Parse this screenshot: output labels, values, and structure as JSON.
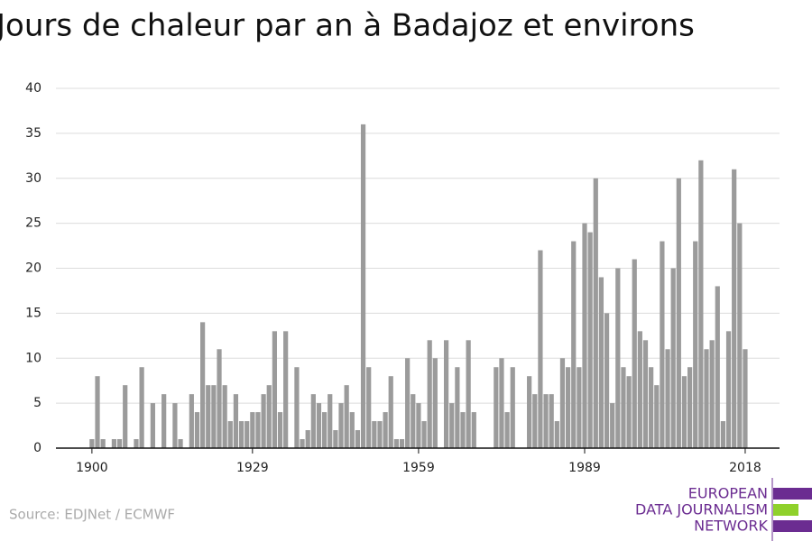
{
  "chart_data": {
    "type": "bar",
    "title": "Jours de chaleur par an à Badajoz et environs",
    "source": "Source: EDJNet / ECMWF",
    "logo": [
      "EUROPEAN",
      "DATA JOURNALISM",
      "NETWORK"
    ],
    "color": "#9b9b9b",
    "x": [
      1900,
      1901,
      1902,
      1903,
      1904,
      1905,
      1906,
      1907,
      1908,
      1909,
      1910,
      1911,
      1912,
      1913,
      1914,
      1915,
      1916,
      1917,
      1918,
      1919,
      1920,
      1921,
      1922,
      1923,
      1924,
      1925,
      1926,
      1927,
      1928,
      1929,
      1930,
      1931,
      1932,
      1933,
      1934,
      1935,
      1936,
      1937,
      1938,
      1939,
      1940,
      1941,
      1942,
      1943,
      1944,
      1945,
      1946,
      1947,
      1948,
      1949,
      1950,
      1951,
      1952,
      1953,
      1954,
      1955,
      1956,
      1957,
      1958,
      1959,
      1960,
      1961,
      1962,
      1963,
      1964,
      1965,
      1966,
      1967,
      1968,
      1969,
      1970,
      1971,
      1972,
      1973,
      1974,
      1975,
      1976,
      1977,
      1978,
      1979,
      1980,
      1981,
      1982,
      1983,
      1984,
      1985,
      1986,
      1987,
      1988,
      1989,
      1990,
      1991,
      1992,
      1993,
      1994,
      1995,
      1996,
      1997,
      1998,
      1999,
      2000,
      2001,
      2002,
      2003,
      2004,
      2005,
      2006,
      2007,
      2008,
      2009,
      2010,
      2011,
      2012,
      2013,
      2014,
      2015,
      2016,
      2017,
      2018
    ],
    "values": [
      1,
      8,
      1,
      0,
      1,
      1,
      7,
      0,
      1,
      9,
      0,
      5,
      0,
      6,
      0,
      5,
      1,
      0,
      6,
      4,
      14,
      7,
      7,
      11,
      7,
      3,
      6,
      3,
      3,
      4,
      4,
      6,
      7,
      13,
      4,
      13,
      0,
      9,
      1,
      2,
      6,
      5,
      4,
      6,
      2,
      5,
      7,
      4,
      2,
      36,
      9,
      3,
      3,
      4,
      8,
      1,
      1,
      10,
      6,
      5,
      3,
      12,
      10,
      0,
      12,
      5,
      9,
      4,
      12,
      4,
      0,
      0,
      0,
      9,
      10,
      4,
      9,
      0,
      0,
      8,
      6,
      22,
      6,
      6,
      3,
      10,
      9,
      23,
      9,
      25,
      24,
      30,
      19,
      15,
      5,
      20,
      9,
      8,
      21,
      13,
      12,
      9,
      7,
      23,
      11,
      20,
      30,
      8,
      9,
      23,
      32,
      11,
      12,
      18,
      3,
      13,
      31,
      25,
      11
    ],
    "xlim": [
      1893.5,
      2024.2
    ],
    "xticks": [
      1900,
      1929,
      1959,
      1989,
      2018
    ],
    "ylim": [
      0,
      40
    ],
    "yticks": [
      0,
      5,
      10,
      15,
      20,
      25,
      30,
      35,
      40
    ],
    "grid": true
  }
}
